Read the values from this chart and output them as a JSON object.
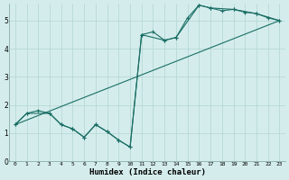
{
  "xlabel": "Humidex (Indice chaleur)",
  "bg_color": "#d4edec",
  "grid_color": "#b8d8d5",
  "line_color": "#1a6e65",
  "xlim": [
    -0.5,
    23.5
  ],
  "ylim": [
    0,
    5.6
  ],
  "xticks": [
    0,
    1,
    2,
    3,
    4,
    5,
    6,
    7,
    8,
    9,
    10,
    11,
    12,
    13,
    14,
    15,
    16,
    17,
    18,
    19,
    20,
    21,
    22,
    23
  ],
  "yticks": [
    0,
    1,
    2,
    3,
    4,
    5
  ],
  "series1_x": [
    0,
    1,
    2,
    3,
    4,
    5,
    6,
    7,
    8,
    9,
    10,
    11,
    12,
    13,
    14,
    15,
    16,
    17,
    18,
    19,
    20,
    21,
    22,
    23
  ],
  "series1_y": [
    1.3,
    1.7,
    1.8,
    1.7,
    1.3,
    1.15,
    0.85,
    1.3,
    1.05,
    0.75,
    0.5,
    4.5,
    4.6,
    4.3,
    4.4,
    5.1,
    5.55,
    5.45,
    5.35,
    5.4,
    5.3,
    5.25,
    5.1,
    5.0
  ],
  "series2_x": [
    0,
    1,
    3,
    4,
    5,
    6,
    7,
    8,
    9,
    10,
    11,
    13,
    14,
    16,
    17,
    19,
    21,
    23
  ],
  "series2_y": [
    1.3,
    1.7,
    1.7,
    1.3,
    1.15,
    0.85,
    1.3,
    1.05,
    0.75,
    0.5,
    4.5,
    4.3,
    4.4,
    5.55,
    5.45,
    5.4,
    5.25,
    5.0
  ],
  "series3_x": [
    0,
    23
  ],
  "series3_y": [
    1.3,
    5.0
  ]
}
